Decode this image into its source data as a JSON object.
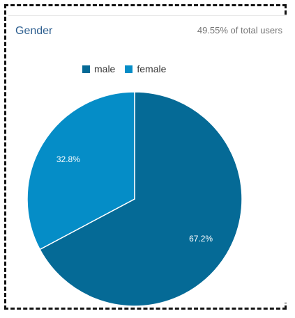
{
  "card": {
    "title": "Gender",
    "subtitle": "49.55% of total users"
  },
  "chart_data": {
    "type": "pie",
    "title": "Gender",
    "legend_position": "top",
    "slices": [
      {
        "name": "male",
        "value": 67.2,
        "label": "67.2%",
        "color": "#056a96"
      },
      {
        "name": "female",
        "value": 32.8,
        "label": "32.8%",
        "color": "#058dc7"
      }
    ]
  }
}
